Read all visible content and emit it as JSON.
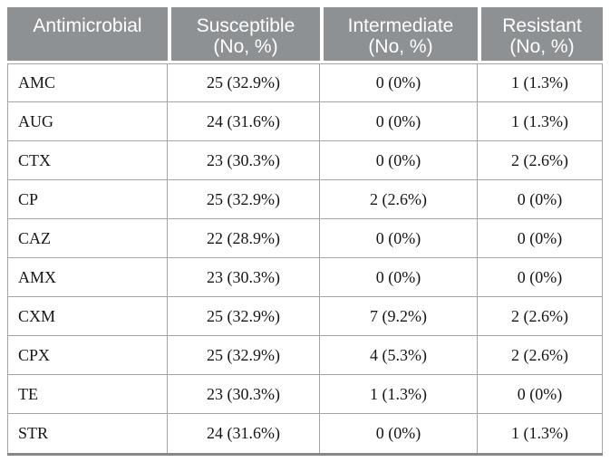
{
  "colors": {
    "page_bg": "#ffffff",
    "header_bg": "#8e9194",
    "header_text": "#ffffff",
    "body_text": "#161616",
    "grid_line": "#a3a5a6",
    "bottom_border": "#84888b"
  },
  "table": {
    "columns": [
      {
        "title": "Antimicrobial",
        "subtitle": ""
      },
      {
        "title": "Susceptible",
        "subtitle": "(No, %)"
      },
      {
        "title": "Intermediate",
        "subtitle": "(No, %)"
      },
      {
        "title": "Resistant",
        "subtitle": "(No, %)"
      }
    ],
    "rows": [
      {
        "antimicrobial": "AMC",
        "susceptible": "25 (32.9%)",
        "intermediate": "0 (0%)",
        "resistant": "1 (1.3%)"
      },
      {
        "antimicrobial": "AUG",
        "susceptible": "24 (31.6%)",
        "intermediate": "0 (0%)",
        "resistant": "1 (1.3%)"
      },
      {
        "antimicrobial": "CTX",
        "susceptible": "23 (30.3%)",
        "intermediate": "0 (0%)",
        "resistant": "2 (2.6%)"
      },
      {
        "antimicrobial": "CP",
        "susceptible": "25 (32.9%)",
        "intermediate": "2 (2.6%)",
        "resistant": "0 (0%)"
      },
      {
        "antimicrobial": "CAZ",
        "susceptible": "22 (28.9%)",
        "intermediate": "0 (0%)",
        "resistant": "0 (0%)"
      },
      {
        "antimicrobial": "AMX",
        "susceptible": "23 (30.3%)",
        "intermediate": "0 (0%)",
        "resistant": "0 (0%)"
      },
      {
        "antimicrobial": "CXM",
        "susceptible": "25 (32.9%)",
        "intermediate": "7 (9.2%)",
        "resistant": "2 (2.6%)"
      },
      {
        "antimicrobial": "CPX",
        "susceptible": "25 (32.9%)",
        "intermediate": "4 (5.3%)",
        "resistant": "2 (2.6%)"
      },
      {
        "antimicrobial": "TE",
        "susceptible": "23 (30.3%)",
        "intermediate": "1 (1.3%)",
        "resistant": "0 (0%)"
      },
      {
        "antimicrobial": "STR",
        "susceptible": "24 (31.6%)",
        "intermediate": "0 (0%)",
        "resistant": "1 (1.3%)"
      }
    ]
  }
}
